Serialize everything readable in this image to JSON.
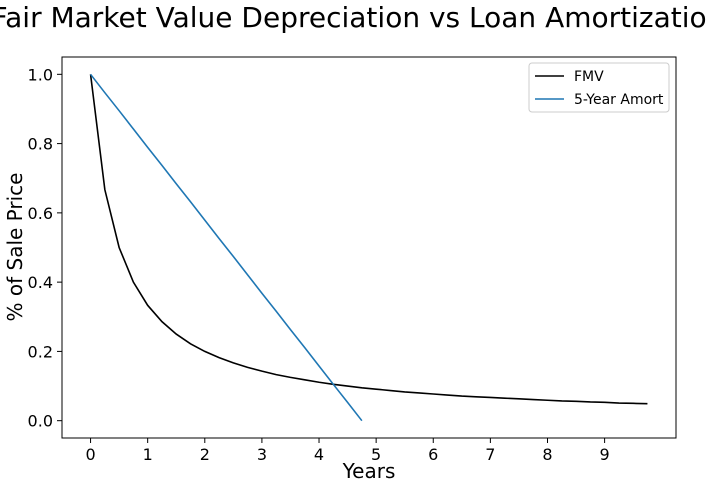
{
  "chart_data": {
    "type": "line",
    "title": "Fair Market Value Depreciation vs Loan Amortization",
    "xlabel": "Years",
    "ylabel": "% of Sale Price",
    "xlim": [
      -0.5,
      10.25
    ],
    "ylim": [
      -0.05,
      1.05
    ],
    "xticks": [
      0,
      1,
      2,
      3,
      4,
      5,
      6,
      7,
      8,
      9
    ],
    "yticks": [
      0.0,
      0.2,
      0.4,
      0.6,
      0.8,
      1.0
    ],
    "grid": false,
    "legend_position": "upper right",
    "series": [
      {
        "name": "FMV",
        "color": "#000000",
        "equation_note": "",
        "x": [
          0,
          0.25,
          0.5,
          0.75,
          1,
          1.25,
          1.5,
          1.75,
          2,
          2.25,
          2.5,
          2.75,
          3,
          3.25,
          3.5,
          3.75,
          4,
          4.25,
          4.5,
          4.75,
          5,
          5.25,
          5.5,
          5.75,
          6,
          6.25,
          6.5,
          6.75,
          7,
          7.25,
          7.5,
          7.75,
          8,
          8.25,
          8.5,
          8.75,
          9,
          9.25,
          9.5,
          9.75
        ],
        "y": [
          1.0,
          0.667,
          0.5,
          0.4,
          0.333,
          0.286,
          0.25,
          0.222,
          0.2,
          0.182,
          0.167,
          0.154,
          0.143,
          0.133,
          0.125,
          0.118,
          0.111,
          0.105,
          0.1,
          0.095,
          0.091,
          0.087,
          0.083,
          0.08,
          0.077,
          0.074,
          0.071,
          0.069,
          0.067,
          0.065,
          0.063,
          0.061,
          0.059,
          0.057,
          0.056,
          0.054,
          0.053,
          0.051,
          0.05,
          0.049
        ]
      },
      {
        "name": "5-Year Amort",
        "color": "#1f77b4",
        "x": [
          0,
          0.25,
          0.5,
          0.75,
          1,
          1.25,
          1.5,
          1.75,
          2,
          2.25,
          2.5,
          2.75,
          3,
          3.25,
          3.5,
          3.75,
          4,
          4.25,
          4.5,
          4.75
        ],
        "y": [
          1.0,
          0.947,
          0.895,
          0.842,
          0.789,
          0.737,
          0.684,
          0.632,
          0.579,
          0.526,
          0.474,
          0.421,
          0.368,
          0.316,
          0.263,
          0.211,
          0.158,
          0.105,
          0.053,
          0.0
        ]
      }
    ]
  }
}
